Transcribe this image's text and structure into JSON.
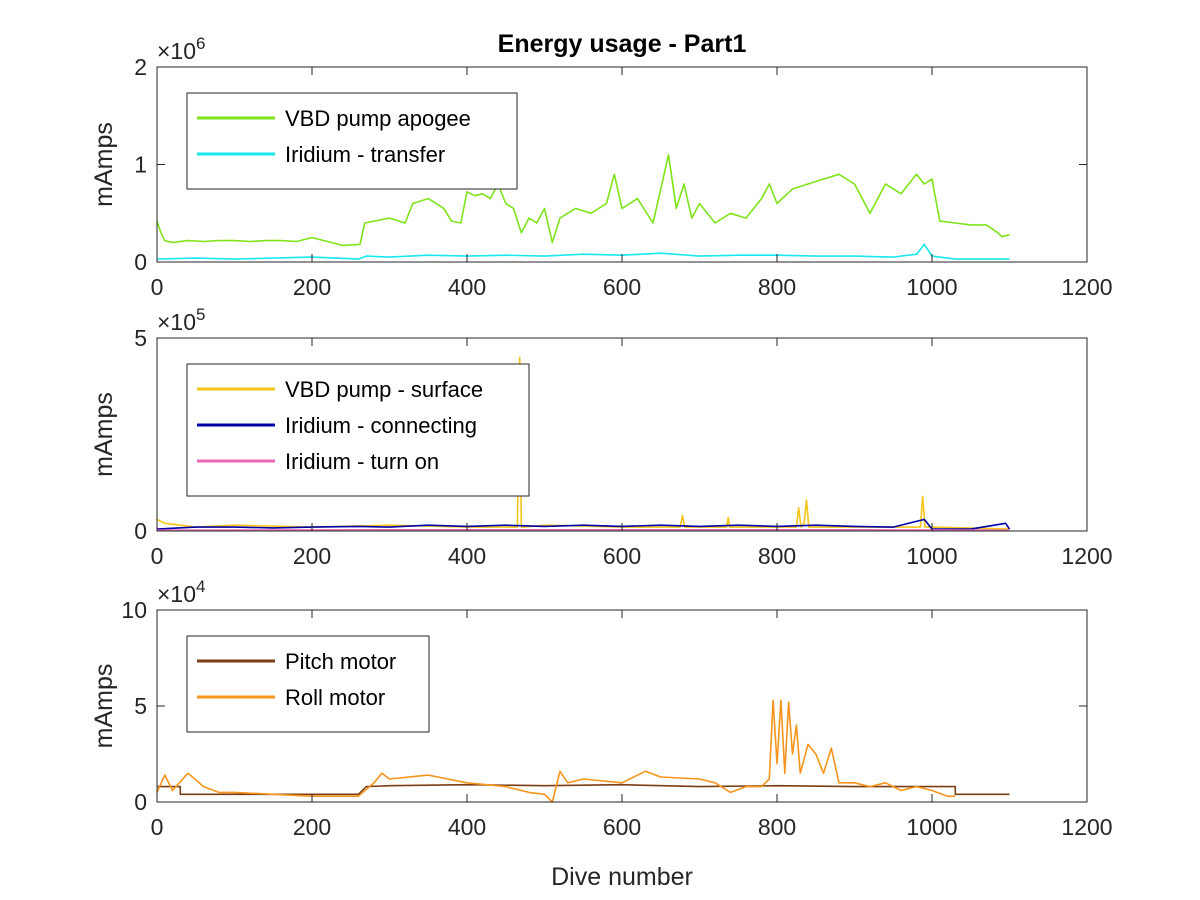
{
  "chart_data": [
    {
      "type": "line",
      "title": "Energy usage - Part1",
      "ylabel": "mAmps",
      "xlabel": "",
      "exponent_label": "×10",
      "exponent": "6",
      "xlim": [
        0,
        1200
      ],
      "ylim": [
        0,
        2
      ],
      "xticks": [
        "0",
        "200",
        "400",
        "600",
        "800",
        "1000",
        "1200"
      ],
      "yticks": [
        "0",
        "1",
        "2"
      ],
      "legend_position": "top-left",
      "series": [
        {
          "name": "VBD pump apogee",
          "color": "#7fe31a",
          "x": [
            0,
            5,
            10,
            20,
            40,
            60,
            80,
            100,
            120,
            140,
            160,
            180,
            200,
            220,
            240,
            262,
            268,
            280,
            300,
            320,
            330,
            350,
            370,
            380,
            392,
            400,
            410,
            420,
            430,
            440,
            450,
            460,
            470,
            480,
            490,
            500,
            510,
            520,
            540,
            560,
            580,
            590,
            600,
            620,
            640,
            650,
            660,
            670,
            680,
            690,
            700,
            720,
            740,
            760,
            780,
            790,
            800,
            820,
            840,
            860,
            880,
            900,
            920,
            940,
            960,
            980,
            990,
            1000,
            1010,
            1030,
            1050,
            1070,
            1085,
            1090,
            1100
          ],
          "y": [
            0.42,
            0.3,
            0.22,
            0.2,
            0.22,
            0.21,
            0.22,
            0.22,
            0.21,
            0.22,
            0.22,
            0.21,
            0.25,
            0.21,
            0.17,
            0.18,
            0.4,
            0.42,
            0.45,
            0.4,
            0.6,
            0.65,
            0.55,
            0.42,
            0.4,
            0.72,
            0.68,
            0.7,
            0.65,
            0.8,
            0.6,
            0.55,
            0.3,
            0.45,
            0.4,
            0.55,
            0.2,
            0.45,
            0.55,
            0.5,
            0.6,
            0.9,
            0.55,
            0.65,
            0.4,
            0.75,
            1.1,
            0.55,
            0.8,
            0.45,
            0.6,
            0.4,
            0.5,
            0.45,
            0.65,
            0.8,
            0.6,
            0.75,
            0.8,
            0.85,
            0.9,
            0.8,
            0.5,
            0.8,
            0.7,
            0.9,
            0.8,
            0.85,
            0.42,
            0.4,
            0.38,
            0.38,
            0.3,
            0.26,
            0.28
          ]
        },
        {
          "name": "Iridium - transfer",
          "color": "#19e8f0",
          "x": [
            0,
            50,
            100,
            150,
            200,
            260,
            270,
            300,
            350,
            400,
            450,
            500,
            550,
            600,
            650,
            700,
            750,
            800,
            850,
            900,
            950,
            980,
            990,
            1000,
            1030,
            1060,
            1100
          ],
          "y": [
            0.03,
            0.04,
            0.03,
            0.04,
            0.05,
            0.03,
            0.06,
            0.05,
            0.07,
            0.06,
            0.07,
            0.06,
            0.08,
            0.07,
            0.09,
            0.06,
            0.07,
            0.07,
            0.06,
            0.06,
            0.05,
            0.08,
            0.18,
            0.06,
            0.03,
            0.03,
            0.03
          ]
        }
      ]
    },
    {
      "type": "line",
      "title": "",
      "ylabel": "mAmps",
      "xlabel": "",
      "exponent_label": "×10",
      "exponent": "5",
      "xlim": [
        0,
        1200
      ],
      "ylim": [
        0,
        5
      ],
      "xticks": [
        "0",
        "200",
        "400",
        "600",
        "800",
        "1000",
        "1200"
      ],
      "yticks": [
        "0",
        "5"
      ],
      "legend_position": "top-left",
      "series": [
        {
          "name": "VBD pump - surface",
          "color": "#f5c518",
          "x": [
            0,
            10,
            50,
            100,
            200,
            300,
            400,
            465,
            468,
            470,
            473,
            500,
            600,
            675,
            678,
            681,
            700,
            735,
            737,
            739,
            800,
            825,
            828,
            831,
            835,
            838,
            841,
            900,
            985,
            988,
            991,
            1000,
            1100
          ],
          "y": [
            0.3,
            0.2,
            0.1,
            0.15,
            0.1,
            0.15,
            0.1,
            0.1,
            4.5,
            0.1,
            0.1,
            0.15,
            0.1,
            0.1,
            0.4,
            0.1,
            0.1,
            0.1,
            0.35,
            0.1,
            0.1,
            0.1,
            0.6,
            0.1,
            0.2,
            0.8,
            0.1,
            0.1,
            0.1,
            0.9,
            0.1,
            0.1,
            0.05
          ]
        },
        {
          "name": "Iridium - connecting",
          "color": "#0000aa",
          "x": [
            0,
            50,
            100,
            150,
            200,
            260,
            300,
            350,
            400,
            450,
            500,
            550,
            600,
            650,
            700,
            750,
            800,
            850,
            900,
            950,
            990,
            1000,
            1050,
            1095,
            1100
          ],
          "y": [
            0.05,
            0.1,
            0.1,
            0.08,
            0.1,
            0.12,
            0.1,
            0.15,
            0.12,
            0.15,
            0.12,
            0.15,
            0.12,
            0.15,
            0.12,
            0.15,
            0.12,
            0.15,
            0.12,
            0.1,
            0.3,
            0.05,
            0.05,
            0.2,
            0.05
          ]
        },
        {
          "name": "Iridium - turn on",
          "color": "#e86ab5",
          "x": [
            0,
            300,
            600,
            900,
            1100
          ],
          "y": [
            0.02,
            0.03,
            0.03,
            0.03,
            0.02
          ]
        }
      ]
    },
    {
      "type": "line",
      "title": "",
      "ylabel": "mAmps",
      "xlabel": "Dive number",
      "exponent_label": "×10",
      "exponent": "4",
      "xlim": [
        0,
        1200
      ],
      "ylim": [
        0,
        10
      ],
      "xticks": [
        "0",
        "200",
        "400",
        "600",
        "800",
        "1000",
        "1200"
      ],
      "yticks": [
        "0",
        "5",
        "10"
      ],
      "legend_position": "top-left",
      "series": [
        {
          "name": "Pitch motor",
          "color": "#7b3e12",
          "x": [
            0,
            30,
            30,
            100,
            200,
            260,
            270,
            300,
            400,
            500,
            600,
            700,
            800,
            900,
            1000,
            1030,
            1030,
            1100
          ],
          "y": [
            0.8,
            0.8,
            0.4,
            0.4,
            0.4,
            0.4,
            0.8,
            0.85,
            0.9,
            0.85,
            0.9,
            0.8,
            0.85,
            0.8,
            0.8,
            0.8,
            0.4,
            0.4
          ]
        },
        {
          "name": "Roll motor",
          "color": "#f7941d",
          "x": [
            0,
            10,
            20,
            40,
            60,
            80,
            100,
            150,
            200,
            260,
            280,
            290,
            300,
            350,
            400,
            450,
            480,
            500,
            510,
            520,
            530,
            550,
            600,
            630,
            650,
            700,
            720,
            740,
            760,
            780,
            790,
            795,
            800,
            805,
            810,
            815,
            820,
            825,
            830,
            840,
            850,
            860,
            870,
            880,
            900,
            920,
            940,
            960,
            980,
            1000,
            1020,
            1030
          ],
          "y": [
            0.5,
            1.4,
            0.6,
            1.5,
            0.8,
            0.5,
            0.5,
            0.4,
            0.3,
            0.3,
            1.0,
            1.5,
            1.2,
            1.4,
            1.0,
            0.8,
            0.5,
            0.4,
            0.0,
            1.6,
            1.0,
            1.2,
            1.0,
            1.6,
            1.3,
            1.2,
            1.0,
            0.5,
            0.8,
            0.8,
            1.2,
            5.3,
            2.0,
            5.3,
            1.5,
            5.2,
            2.5,
            4.0,
            1.5,
            3.0,
            2.5,
            1.5,
            2.8,
            1.0,
            1.0,
            0.8,
            1.0,
            0.6,
            0.8,
            0.6,
            0.3,
            0.3
          ]
        }
      ]
    }
  ]
}
